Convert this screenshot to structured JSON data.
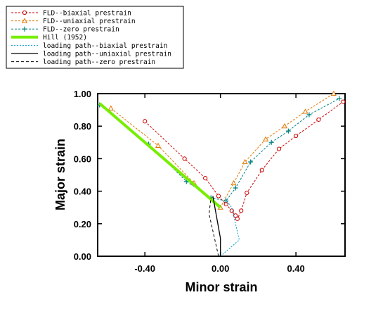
{
  "chart_data": {
    "type": "line",
    "xlabel": "Minor strain",
    "ylabel": "Major strain",
    "xlim": [
      -0.65,
      0.66
    ],
    "ylim": [
      0,
      1.0
    ],
    "xticks": [
      {
        "v": -0.4,
        "label": "-0.40"
      },
      {
        "v": 0.0,
        "label": "0.00"
      },
      {
        "v": 0.4,
        "label": "0.40"
      }
    ],
    "yticks": [
      {
        "v": 0.0,
        "label": "0.00"
      },
      {
        "v": 0.2,
        "label": "0.20"
      },
      {
        "v": 0.4,
        "label": "0.40"
      },
      {
        "v": 0.6,
        "label": "0.60"
      },
      {
        "v": 0.8,
        "label": "0.80"
      },
      {
        "v": 1.0,
        "label": "1.00"
      }
    ],
    "grid": false,
    "legend_position": "top-left",
    "series": [
      {
        "name": "FLD--biaxial prestrain",
        "color": "#cc0000",
        "dash": "3,2",
        "width": 1,
        "marker": "circle",
        "x": [
          -0.4,
          -0.19,
          -0.08,
          -0.01,
          0.03,
          0.06,
          0.08,
          0.09,
          0.11,
          0.14,
          0.22,
          0.31,
          0.4,
          0.52,
          0.65
        ],
        "y": [
          0.83,
          0.6,
          0.48,
          0.37,
          0.32,
          0.28,
          0.25,
          0.23,
          0.28,
          0.39,
          0.53,
          0.66,
          0.74,
          0.84,
          0.95
        ]
      },
      {
        "name": "FLD--uniaxial prestrain",
        "color": "#e07800",
        "dash": "3,2",
        "width": 1,
        "marker": "triangle",
        "x": [
          -0.58,
          -0.33,
          -0.14,
          0.0,
          0.07,
          0.13,
          0.24,
          0.34,
          0.45,
          0.6
        ],
        "y": [
          0.91,
          0.68,
          0.45,
          0.3,
          0.45,
          0.58,
          0.72,
          0.8,
          0.89,
          1.0
        ]
      },
      {
        "name": "FLD--zero prestrain",
        "color": "#008080",
        "dash": "3,2",
        "width": 1,
        "marker": "plus",
        "x": [
          -0.64,
          -0.38,
          -0.18,
          -0.05,
          0.03,
          0.08,
          0.16,
          0.27,
          0.36,
          0.47,
          0.63
        ],
        "y": [
          0.93,
          0.69,
          0.46,
          0.36,
          0.34,
          0.42,
          0.58,
          0.7,
          0.77,
          0.87,
          0.97
        ]
      },
      {
        "name": "Hill (1952)",
        "color": "#77ee00",
        "dash": "",
        "width": 4,
        "marker": "none",
        "x": [
          -0.64,
          0.0
        ],
        "y": [
          0.94,
          0.3
        ]
      },
      {
        "name": "loading path--biaxial prestrain",
        "color": "#0099cc",
        "dash": "2,2",
        "width": 1,
        "marker": "none",
        "x": [
          0.0,
          0.1,
          0.06,
          0.02
        ],
        "y": [
          0.0,
          0.1,
          0.3,
          0.36
        ]
      },
      {
        "name": "loading path--uniaxial prestrain",
        "color": "#000000",
        "dash": "",
        "width": 1.3,
        "marker": "none",
        "x": [
          0.0,
          0.0,
          -0.04
        ],
        "y": [
          0.0,
          0.11,
          0.37
        ]
      },
      {
        "name": "loading path--zero prestrain",
        "color": "#000000",
        "dash": "4,3",
        "width": 1,
        "marker": "none",
        "x": [
          -0.01,
          -0.06,
          -0.05
        ],
        "y": [
          0.0,
          0.26,
          0.36
        ]
      }
    ]
  }
}
